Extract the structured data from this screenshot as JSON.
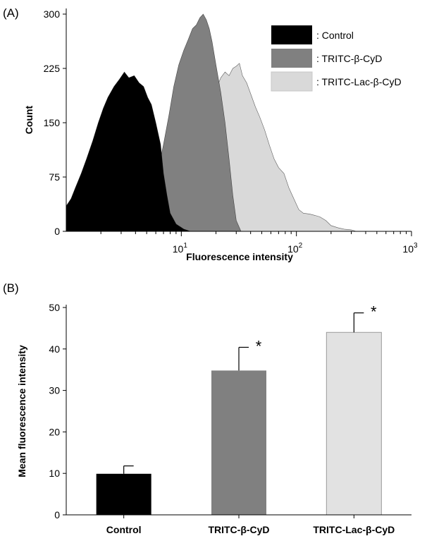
{
  "chart_data": [
    {
      "panel": "(A)",
      "type": "area",
      "xlabel": "Fluorescence intensity",
      "ylabel": "Count",
      "x_scale": "log",
      "xlim": [
        1,
        1000
      ],
      "ylim": [
        0,
        300
      ],
      "x_ticks": [
        {
          "value": 10,
          "base": "10",
          "exp": "1"
        },
        {
          "value": 100,
          "base": "10",
          "exp": "2"
        },
        {
          "value": 1000,
          "base": "10",
          "exp": "3"
        }
      ],
      "y_ticks": [
        0,
        75,
        150,
        225,
        300
      ],
      "legend_position": "top-right",
      "series": [
        {
          "name": ": TRITC-Lac-β-CyD",
          "color": "#d9d9d9",
          "x": [
            4.7,
            5.5,
            6.5,
            7.5,
            8.5,
            10,
            11.5,
            13,
            15,
            17,
            19,
            20.5,
            22,
            24,
            26,
            28,
            30,
            32,
            34,
            37,
            40,
            44,
            48,
            53,
            58,
            64,
            70,
            78,
            86,
            95,
            105,
            115,
            130,
            145,
            160,
            180,
            200,
            230,
            260,
            300,
            330
          ],
          "y": [
            0,
            12,
            28,
            45,
            65,
            90,
            110,
            125,
            140,
            160,
            180,
            200,
            212,
            220,
            215,
            225,
            228,
            232,
            215,
            205,
            190,
            172,
            158,
            140,
            120,
            100,
            88,
            80,
            60,
            45,
            30,
            25,
            24,
            22,
            20,
            15,
            8,
            5,
            3,
            2,
            0
          ]
        },
        {
          "name": ": TRITC-β-CyD",
          "color": "#808080",
          "x": [
            3.1,
            3.6,
            4.2,
            4.8,
            5.5,
            6.3,
            7.0,
            7.8,
            8.6,
            9.5,
            10.5,
            11.5,
            12.5,
            13.5,
            14.5,
            15.5,
            16.5,
            17.5,
            18.5,
            20,
            22,
            24,
            26,
            28,
            30,
            33
          ],
          "y": [
            0,
            10,
            18,
            30,
            50,
            85,
            120,
            160,
            200,
            230,
            250,
            265,
            280,
            285,
            295,
            300,
            292,
            280,
            262,
            230,
            192,
            150,
            100,
            50,
            15,
            0
          ]
        },
        {
          "name": ": Control",
          "color": "#000000",
          "x": [
            1.0,
            1.1,
            1.2,
            1.35,
            1.5,
            1.7,
            1.9,
            2.1,
            2.3,
            2.6,
            2.9,
            3.2,
            3.5,
            3.9,
            4.3,
            4.7,
            5.1,
            5.5,
            6.0,
            6.6,
            7.0,
            7.5,
            8.0,
            9.0,
            10.5,
            12
          ],
          "y": [
            35,
            45,
            60,
            80,
            100,
            125,
            150,
            170,
            185,
            200,
            210,
            220,
            212,
            215,
            205,
            200,
            185,
            175,
            150,
            120,
            80,
            50,
            25,
            10,
            3,
            0
          ]
        }
      ]
    },
    {
      "panel": "(B)",
      "type": "bar",
      "ylabel": "Mean fluorescence intensity",
      "xlabel": "",
      "ylim": [
        0,
        50
      ],
      "y_ticks": [
        0,
        10,
        20,
        30,
        40,
        50
      ],
      "categories": [
        "Control",
        "TRITC-β-CyD",
        "TRITC-Lac-β-CyD"
      ],
      "values": [
        9.9,
        34.8,
        44.0
      ],
      "errors": [
        1.9,
        5.6,
        4.7
      ],
      "colors": [
        "#000000",
        "#808080",
        "#e2e2e2"
      ],
      "annotations": [
        "",
        "*",
        "*"
      ]
    }
  ]
}
